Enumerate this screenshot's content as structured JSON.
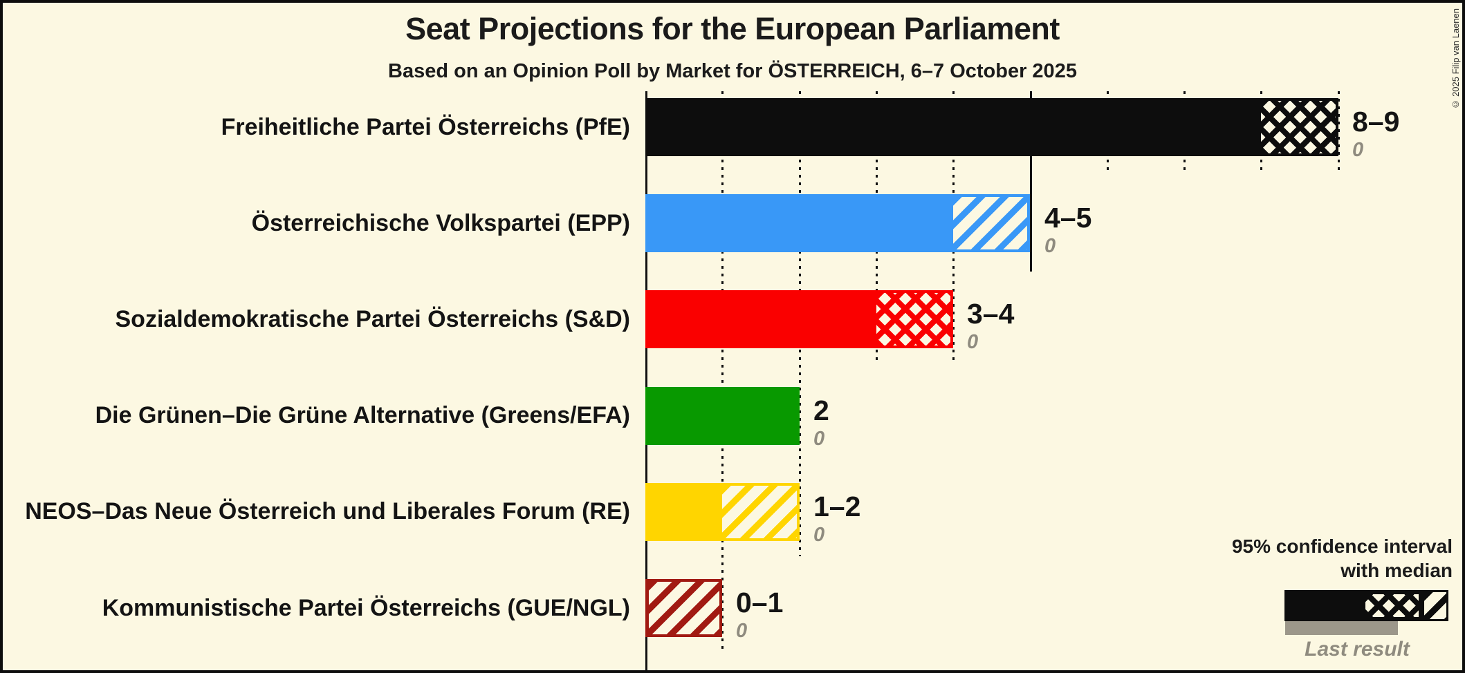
{
  "header": {
    "title": "Seat Projections for the European Parliament",
    "subtitle": "Based on an Opinion Poll by Market for ÖSTERREICH, 6–7 October 2025",
    "copyright": "© 2025 Filip van Laenen"
  },
  "legend": {
    "ci_line1": "95% confidence interval",
    "ci_line2": "with median",
    "last_result_label": "Last result",
    "bar_color": "#0d0d0d",
    "last_result_bar_color": "#9c978a"
  },
  "colors": {
    "background": "#FCF8E2",
    "frame": "#0d0d0d",
    "gridline": "#111111",
    "gray_text": "#8f8b7f"
  },
  "chart_data": {
    "type": "bar",
    "orientation": "horizontal",
    "title": "Seat Projections for the European Parliament",
    "subtitle": "Based on an Opinion Poll by Market for ÖSTERREICH, 6–7 October 2025",
    "x_axis": {
      "min": 0,
      "max": 9,
      "unit": "seats",
      "gridline_step": 1,
      "solid_tick_step": 5,
      "gridline_style": "dotted",
      "labels_shown": false
    },
    "bars": [
      {
        "party": "Freiheitliche Partei Österreichs (PfE)",
        "color": "#0d0d0d",
        "solid_to": 8,
        "crosshatch_to": 9,
        "diagonal_to": 9,
        "value_label": "8–9",
        "ci_low": 8,
        "ci_high": 9,
        "last_result": 0,
        "last_result_label": "0"
      },
      {
        "party": "Österreichische Volkspartei (EPP)",
        "color": "#3998f7",
        "solid_to": 4,
        "crosshatch_to": 4,
        "diagonal_to": 5,
        "value_label": "4–5",
        "ci_low": 4,
        "ci_high": 5,
        "last_result": 0,
        "last_result_label": "0"
      },
      {
        "party": "Sozialdemokratische Partei Österreichs (S&D)",
        "color": "#fa0000",
        "solid_to": 3,
        "crosshatch_to": 4,
        "diagonal_to": 4,
        "value_label": "3–4",
        "ci_low": 3,
        "ci_high": 4,
        "last_result": 0,
        "last_result_label": "0"
      },
      {
        "party": "Die Grünen–Die Grüne Alternative (Greens/EFA)",
        "color": "#089900",
        "solid_to": 2,
        "crosshatch_to": 2,
        "diagonal_to": 2,
        "value_label": "2",
        "ci_low": 2,
        "ci_high": 2,
        "last_result": 0,
        "last_result_label": "0"
      },
      {
        "party": "NEOS–Das Neue Österreich und Liberales Forum (RE)",
        "color": "#ffd500",
        "solid_to": 1,
        "crosshatch_to": 1,
        "diagonal_to": 2,
        "value_label": "1–2",
        "ci_low": 1,
        "ci_high": 2,
        "last_result": 0,
        "last_result_label": "0"
      },
      {
        "party": "Kommunistische Partei Österreichs (GUE/NGL)",
        "color": "#a11a12",
        "solid_to": 0,
        "crosshatch_to": 0,
        "diagonal_to": 1,
        "value_label": "0–1",
        "ci_low": 0,
        "ci_high": 1,
        "last_result": 0,
        "last_result_label": "0"
      }
    ]
  }
}
